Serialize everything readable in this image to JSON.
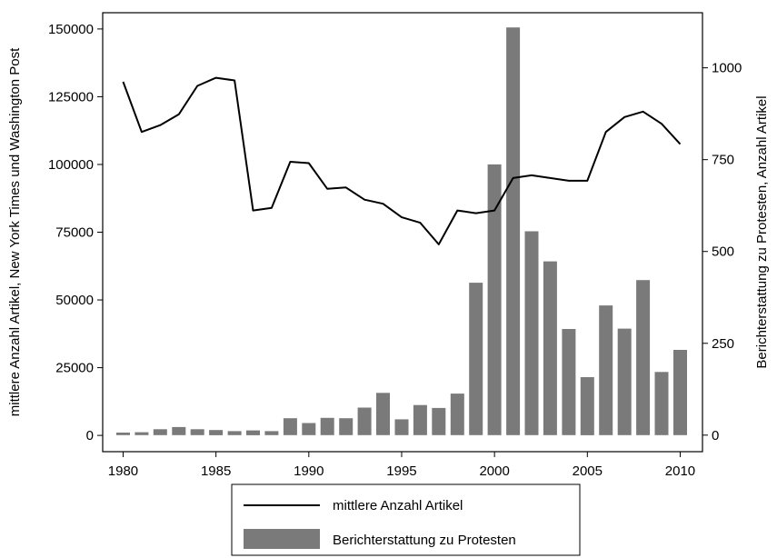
{
  "chart_data": {
    "type": "bar",
    "x": [
      1980,
      1981,
      1982,
      1983,
      1984,
      1985,
      1986,
      1987,
      1988,
      1989,
      1990,
      1991,
      1992,
      1993,
      1994,
      1995,
      1996,
      1997,
      1998,
      1999,
      2000,
      2001,
      2002,
      2003,
      2004,
      2005,
      2006,
      2007,
      2008,
      2009,
      2010
    ],
    "series": [
      {
        "name": "mittlere Anzahl Artikel",
        "type": "line",
        "axis": "left",
        "color": "#000000",
        "values": [
          130500,
          112000,
          114500,
          118500,
          129000,
          132000,
          131000,
          83000,
          84000,
          101000,
          100500,
          91000,
          91500,
          87000,
          85500,
          80500,
          78500,
          70500,
          83000,
          82000,
          83000,
          95000,
          96000,
          95000,
          94000,
          94000,
          112000,
          117500,
          119500,
          115000,
          107500
        ]
      },
      {
        "name": "Berichterstattung zu Protesten",
        "type": "bar",
        "axis": "right",
        "color": "#7a7a7a",
        "values": [
          7,
          8,
          16,
          22,
          16,
          14,
          11,
          13,
          11,
          46,
          33,
          47,
          46,
          75,
          115,
          43,
          82,
          74,
          113,
          415,
          737,
          1110,
          555,
          473,
          289,
          158,
          353,
          290,
          422,
          172,
          232
        ]
      }
    ],
    "xlabel": "",
    "ylabel_left": "mittlere Anzahl Artikel, New York Times und Washington Post",
    "ylabel_right": "Berichterstattung zu Protesten, Anzahl Artikel",
    "xlim": [
      1978.9,
      2011.2
    ],
    "ylim_left": [
      -6000,
      156000
    ],
    "ylim_right": [
      -45,
      1150
    ],
    "xticks": [
      1980,
      1985,
      1990,
      1995,
      2000,
      2005,
      2010
    ],
    "yticks_left": [
      0,
      25000,
      50000,
      75000,
      100000,
      125000,
      150000
    ],
    "yticks_right": [
      0,
      250,
      500,
      750,
      1000
    ],
    "grid": false,
    "legend_position": "bottom"
  }
}
